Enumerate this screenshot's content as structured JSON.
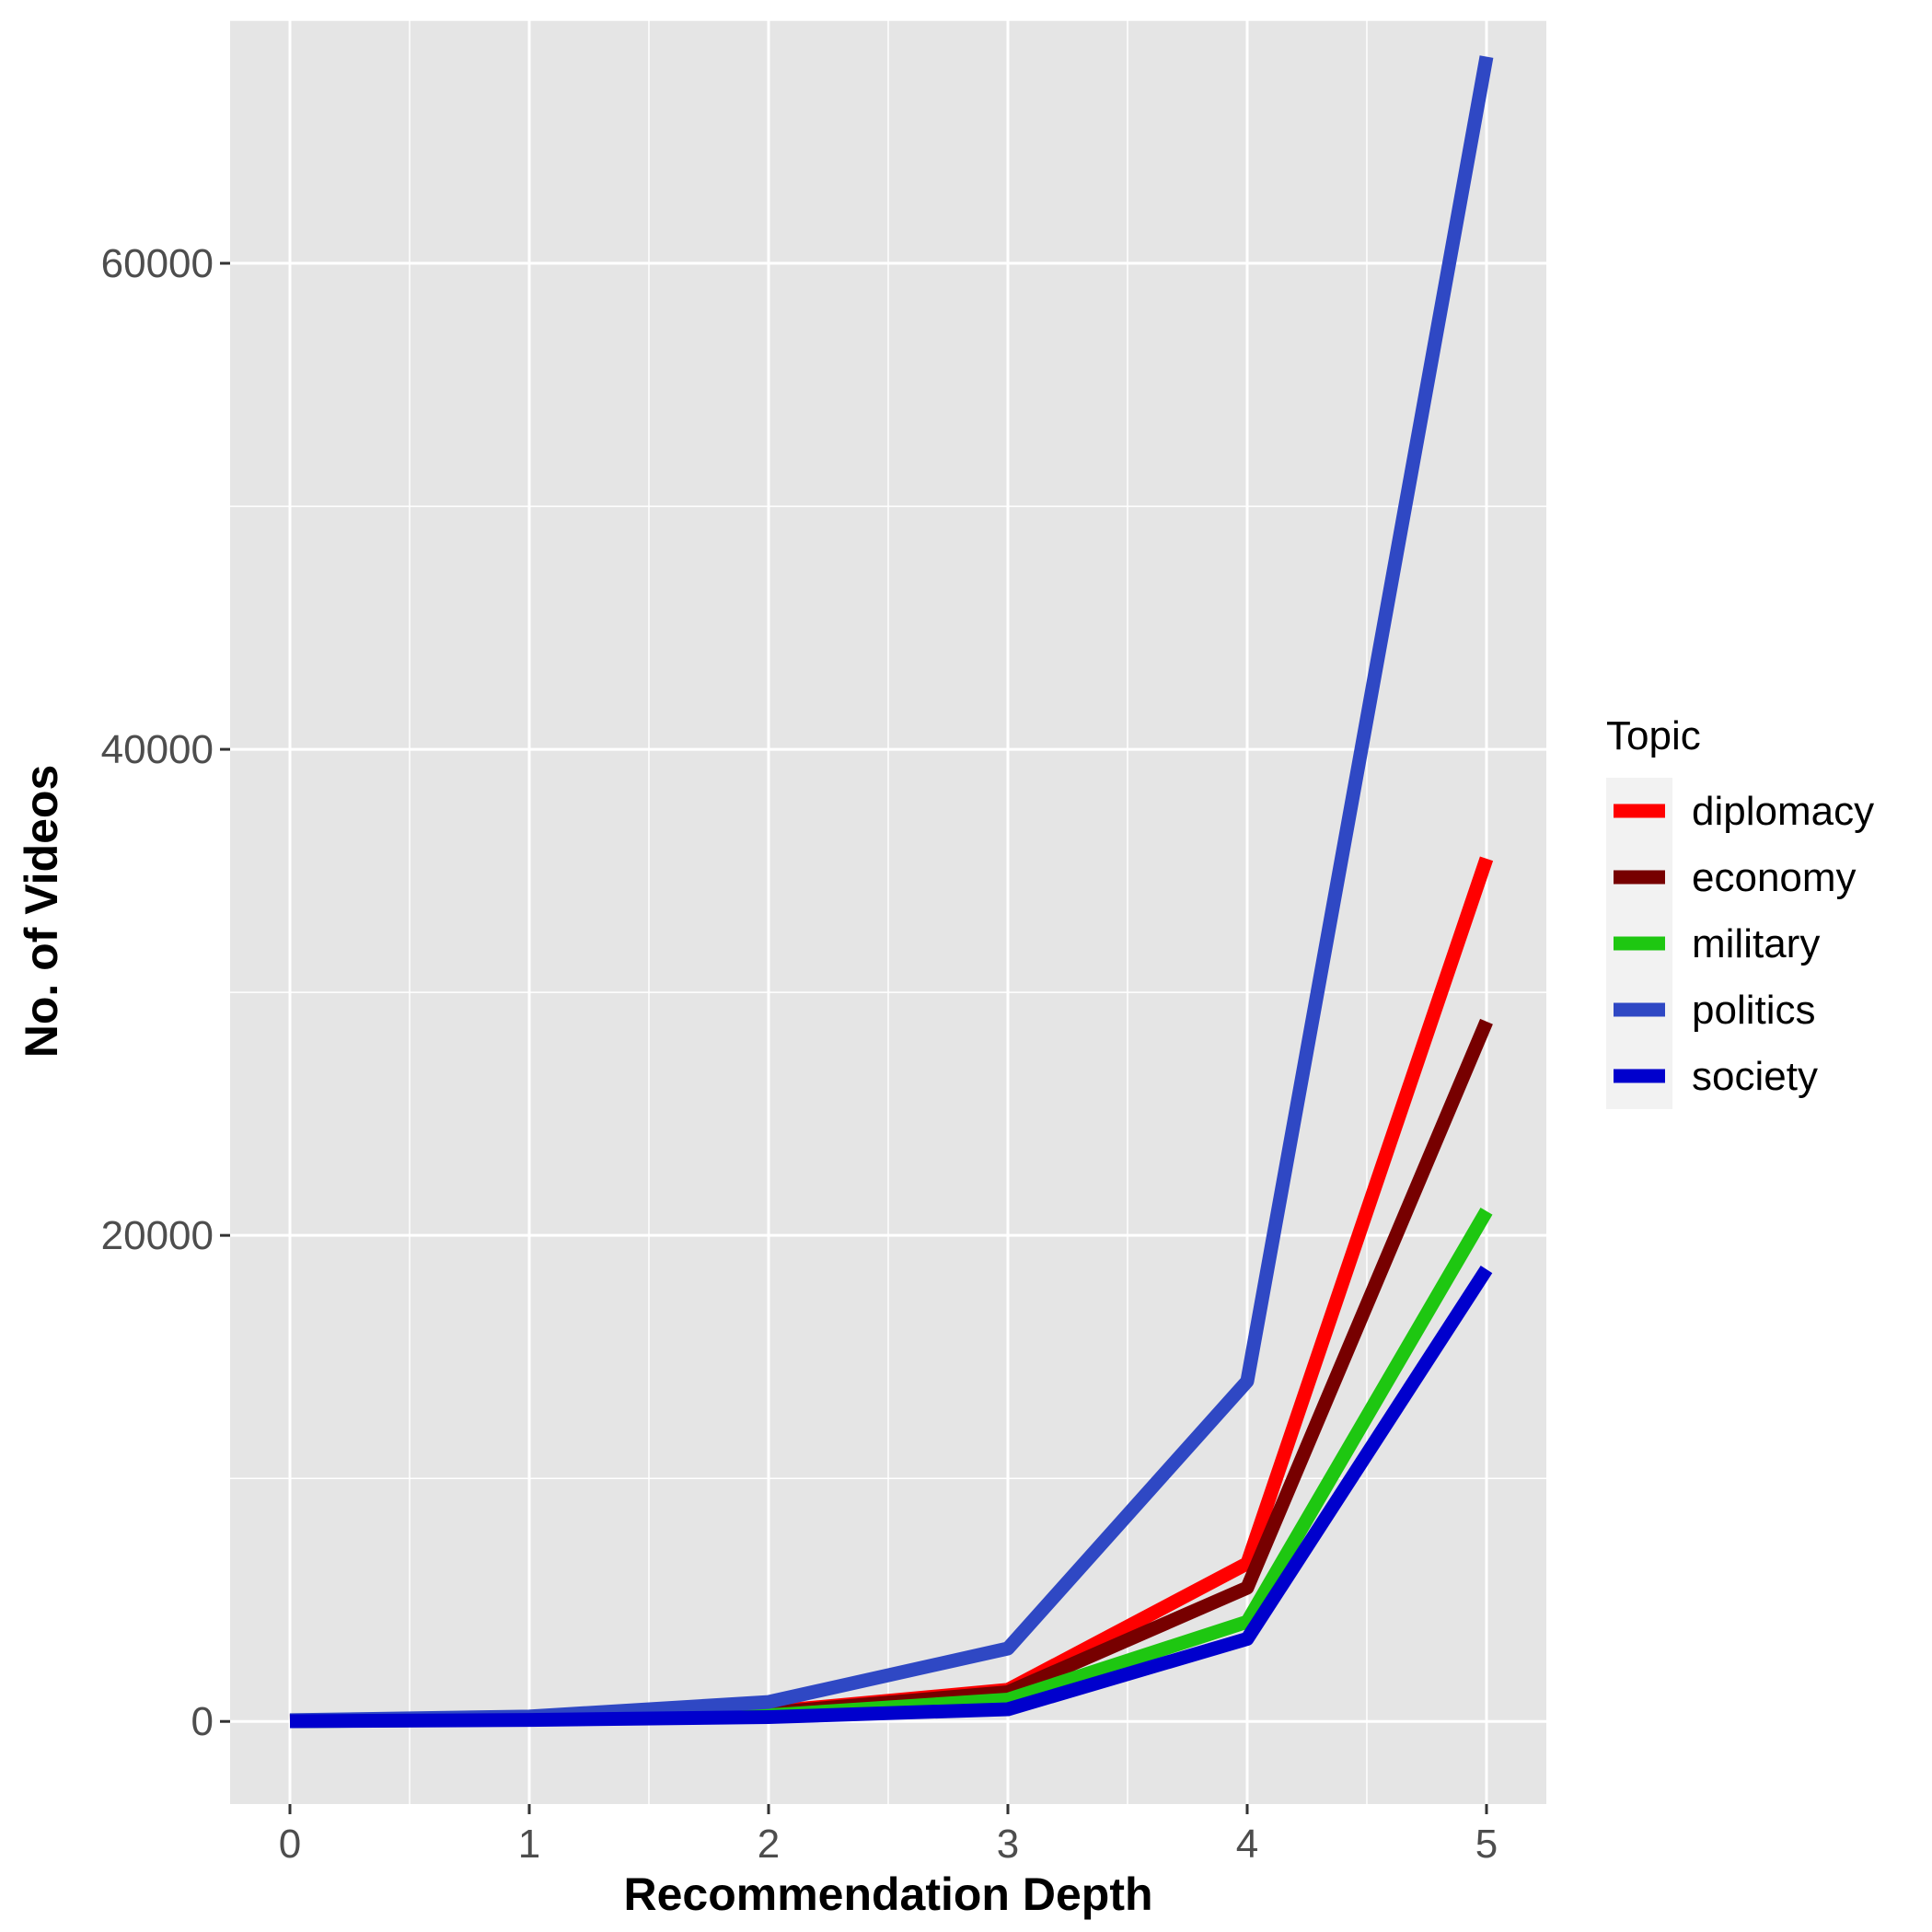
{
  "chart_data": {
    "type": "line",
    "title": "",
    "xlabel": "Recommendation Depth",
    "ylabel": "No. of Videos",
    "x": [
      0,
      1,
      2,
      3,
      4,
      5
    ],
    "xlim": [
      -0.25,
      5.25
    ],
    "ylim": [
      -3400,
      70000
    ],
    "x_ticks": [
      "0",
      "1",
      "2",
      "3",
      "4",
      "5"
    ],
    "y_ticks": [
      "0",
      "20000",
      "40000",
      "60000"
    ],
    "grid": true,
    "legend": {
      "title": "Topic",
      "position": "right"
    },
    "series": [
      {
        "name": "diplomacy",
        "color": "#ff0000",
        "values": [
          20,
          150,
          400,
          1300,
          6500,
          35500
        ]
      },
      {
        "name": "economy",
        "color": "#770000",
        "values": [
          20,
          130,
          350,
          1200,
          5500,
          28800
        ]
      },
      {
        "name": "military",
        "color": "#1ec711",
        "values": [
          10,
          80,
          250,
          900,
          4100,
          21000
        ]
      },
      {
        "name": "politics",
        "color": "#2f48c4",
        "values": [
          50,
          200,
          800,
          3000,
          14000,
          68500
        ]
      },
      {
        "name": "society",
        "color": "#0000cd",
        "values": [
          10,
          60,
          180,
          500,
          3400,
          18600
        ]
      }
    ]
  }
}
